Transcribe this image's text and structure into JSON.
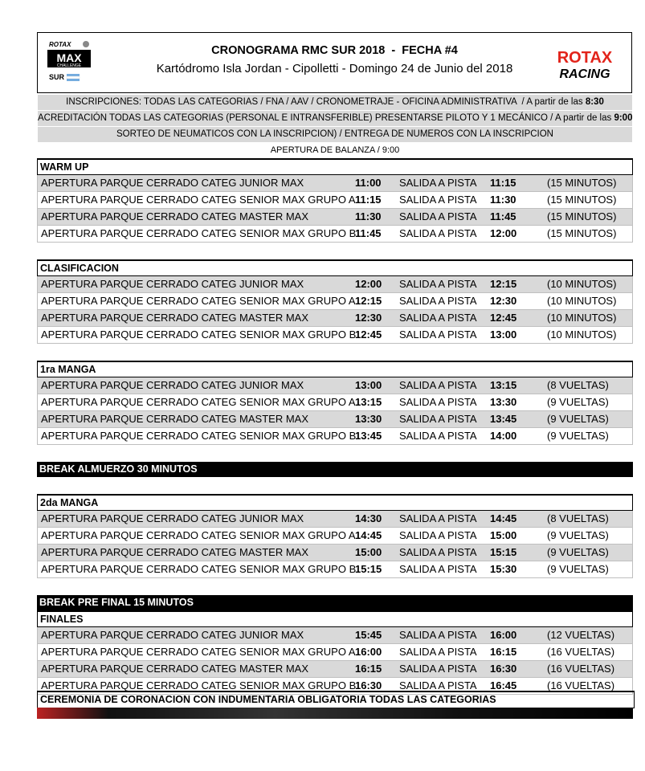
{
  "header": {
    "title": "CRONOGRAMA RMC SUR 2018  -  FECHA #4",
    "subtitle": "Kartódromo Isla Jordan - Cipolletti - Domingo 24 de Junio del 2018",
    "logo_left": {
      "brand": "ROTAX",
      "name": "MAX",
      "tag": "CHALLENGE",
      "region": "SUR"
    },
    "logo_right": {
      "brand": "ROTAX",
      "tag": "RACING"
    }
  },
  "info": [
    {
      "text": "INSCRIPCIONES: TODAS LAS CATEGORIAS / FNA / AAV / CRONOMETRAJE - OFICINA ADMINISTRATIVA  / A partir de las ",
      "time": "8:30"
    },
    {
      "text": "ACREDITACIÓN TODAS LAS CATEGORIAS (PERSONAL E INTRANSFERIBLE) PRESENTARSE PILOTO Y 1 MECÁNICO / A partir de las ",
      "time": "9:00"
    },
    {
      "text": "SORTEO DE NEUMATICOS CON LA INSCRIPCION) / ENTREGA DE NUMEROS CON LA INSCRIPCION"
    },
    {
      "text": "APERTURA DE BALANZA / 9:00"
    }
  ],
  "blocks": [
    {
      "heading": "WARM UP",
      "rows": [
        [
          "APERTURA PARQUE CERRADO CATEG JUNIOR MAX",
          "11:00",
          "SALIDA A PISTA",
          "11:15",
          "(15 MINUTOS)"
        ],
        [
          "APERTURA PARQUE CERRADO CATEG SENIOR MAX GRUPO A",
          "11:15",
          "SALIDA A PISTA",
          "11:30",
          "(15 MINUTOS)"
        ],
        [
          "APERTURA PARQUE CERRADO CATEG MASTER MAX",
          "11:30",
          "SALIDA A PISTA",
          "11:45",
          "(15 MINUTOS)"
        ],
        [
          "APERTURA PARQUE CERRADO CATEG SENIOR MAX GRUPO B",
          "11:45",
          "SALIDA A PISTA",
          "12:00",
          "(15 MINUTOS)"
        ]
      ]
    },
    {
      "heading": "CLASIFICACION",
      "rows": [
        [
          "APERTURA PARQUE CERRADO CATEG JUNIOR MAX",
          "12:00",
          "SALIDA A PISTA",
          "12:15",
          "(10 MINUTOS)"
        ],
        [
          "APERTURA PARQUE CERRADO CATEG SENIOR MAX GRUPO A",
          "12:15",
          "SALIDA A PISTA",
          "12:30",
          "(10 MINUTOS)"
        ],
        [
          "APERTURA PARQUE CERRADO CATEG MASTER MAX",
          "12:30",
          "SALIDA A PISTA",
          "12:45",
          "(10 MINUTOS)"
        ],
        [
          "APERTURA PARQUE CERRADO CATEG SENIOR MAX GRUPO B",
          "12:45",
          "SALIDA A PISTA",
          "13:00",
          "(10 MINUTOS)"
        ]
      ]
    },
    {
      "heading": "1ra MANGA",
      "rows": [
        [
          "APERTURA PARQUE CERRADO CATEG JUNIOR MAX",
          "13:00",
          "SALIDA A PISTA",
          "13:15",
          "(8 VUELTAS)"
        ],
        [
          "APERTURA PARQUE CERRADO CATEG SENIOR MAX GRUPO A",
          "13:15",
          "SALIDA A PISTA",
          "13:30",
          "(9 VUELTAS)"
        ],
        [
          "APERTURA PARQUE CERRADO CATEG MASTER MAX",
          "13:30",
          "SALIDA A PISTA",
          "13:45",
          "(9 VUELTAS)"
        ],
        [
          "APERTURA PARQUE CERRADO CATEG SENIOR MAX GRUPO B",
          "13:45",
          "SALIDA A PISTA",
          "14:00",
          "(9 VUELTAS)"
        ]
      ]
    },
    {
      "break": "BREAK ALMUERZO 30 MINUTOS"
    },
    {
      "heading": "2da MANGA",
      "rows": [
        [
          "APERTURA PARQUE CERRADO CATEG JUNIOR MAX",
          "14:30",
          "SALIDA A PISTA",
          "14:45",
          "(8 VUELTAS)"
        ],
        [
          "APERTURA PARQUE CERRADO CATEG SENIOR MAX GRUPO A",
          "14:45",
          "SALIDA A PISTA",
          "15:00",
          "(9 VUELTAS)"
        ],
        [
          "APERTURA PARQUE CERRADO CATEG MASTER MAX",
          "15:00",
          "SALIDA A PISTA",
          "15:15",
          "(9 VUELTAS)"
        ],
        [
          "APERTURA PARQUE CERRADO CATEG SENIOR MAX GRUPO B",
          "15:15",
          "SALIDA A PISTA",
          "15:30",
          "(9 VUELTAS)"
        ]
      ]
    },
    {
      "break": "BREAK PRE FINAL 15 MINUTOS"
    },
    {
      "heading": "FINALES",
      "rows": [
        [
          "APERTURA PARQUE CERRADO CATEG JUNIOR MAX",
          "15:45",
          "SALIDA A PISTA",
          "16:00",
          "(12 VUELTAS)"
        ],
        [
          "APERTURA PARQUE CERRADO CATEG SENIOR MAX GRUPO A",
          "16:00",
          "SALIDA A PISTA",
          "16:15",
          "(16 VUELTAS)"
        ],
        [
          "APERTURA PARQUE CERRADO CATEG MASTER MAX",
          "16:15",
          "SALIDA A PISTA",
          "16:30",
          "(16 VUELTAS)"
        ],
        [
          "APERTURA PARQUE CERRADO CATEG SENIOR MAX GRUPO B",
          "16:30",
          "SALIDA A PISTA",
          "16:45",
          "(16 VUELTAS)"
        ]
      ]
    }
  ],
  "footer": "CEREMONIA DE CORONACION CON INDUMENTARIA OBLIGATORIA TODAS LAS CATEGORIAS"
}
